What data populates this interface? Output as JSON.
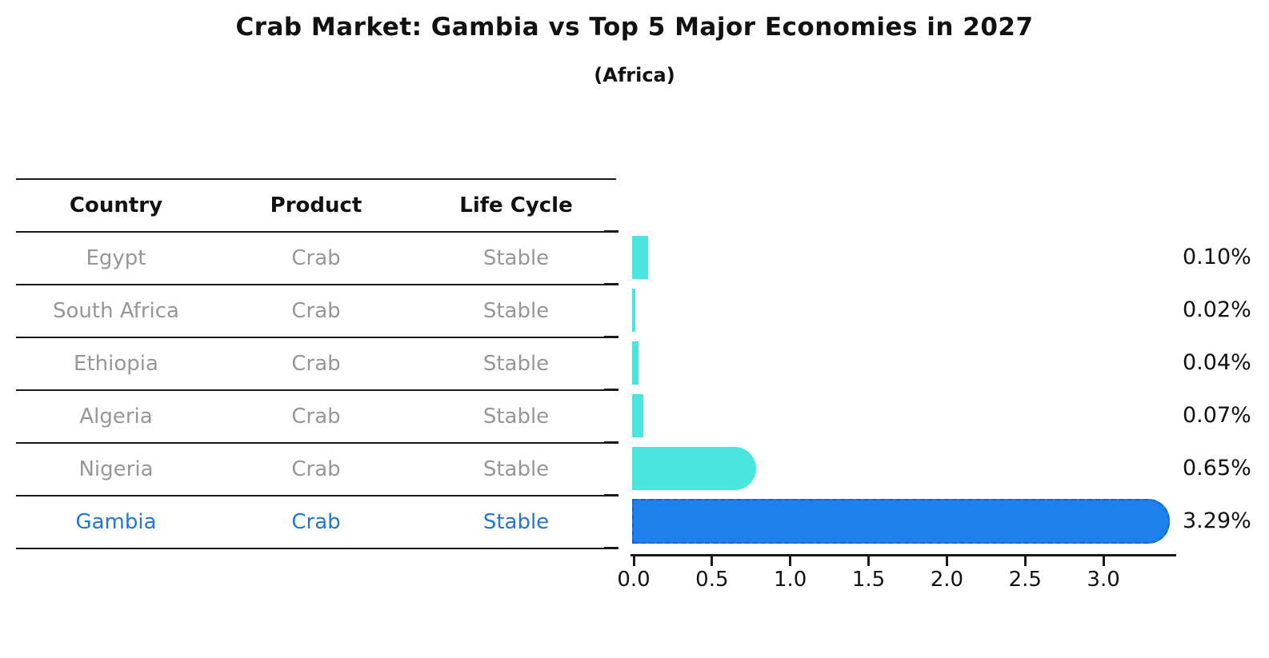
{
  "title": "Crab Market: Gambia vs Top 5 Major Economies in 2027",
  "subtitle": "(Africa)",
  "table": {
    "headers": [
      "Country",
      "Product",
      "Life Cycle"
    ],
    "rows": [
      {
        "country": "Egypt",
        "product": "Crab",
        "life_cycle": "Stable",
        "highlight": false
      },
      {
        "country": "South Africa",
        "product": "Crab",
        "life_cycle": "Stable",
        "highlight": false
      },
      {
        "country": "Ethiopia",
        "product": "Crab",
        "life_cycle": "Stable",
        "highlight": false
      },
      {
        "country": "Algeria",
        "product": "Crab",
        "life_cycle": "Stable",
        "highlight": false
      },
      {
        "country": "Nigeria",
        "product": "Crab",
        "life_cycle": "Stable",
        "highlight": false
      },
      {
        "country": "Gambia",
        "product": "Crab",
        "life_cycle": "Stable",
        "highlight": true
      }
    ]
  },
  "chart_data": {
    "type": "bar",
    "orientation": "horizontal",
    "title": "Crab Market: Gambia vs Top 5 Major Economies in 2027",
    "subtitle": "(Africa)",
    "categories": [
      "Egypt",
      "South Africa",
      "Ethiopia",
      "Algeria",
      "Nigeria",
      "Gambia"
    ],
    "values": [
      0.1,
      0.02,
      0.04,
      0.07,
      0.65,
      3.29
    ],
    "value_labels": [
      "0.10%",
      "0.02%",
      "0.04%",
      "0.07%",
      "0.65%",
      "3.29%"
    ],
    "unit": "%",
    "highlight_index": 5,
    "x_ticks": [
      "0.0",
      "0.5",
      "1.0",
      "1.5",
      "2.0",
      "2.5",
      "3.0"
    ],
    "x_tick_values": [
      0.0,
      0.5,
      1.0,
      1.5,
      2.0,
      2.5,
      3.0
    ],
    "xlim": [
      0,
      3.45
    ],
    "grid": false,
    "legend": "none",
    "bar_color": "#4AE5DD",
    "highlight_bar_color": "#1E80EB",
    "highlight_border_color": "#1565CD"
  },
  "colors": {
    "text": "#111111",
    "muted_row_text": "#979797",
    "highlight_text": "#2376d2",
    "line": "#1a1a1a"
  }
}
